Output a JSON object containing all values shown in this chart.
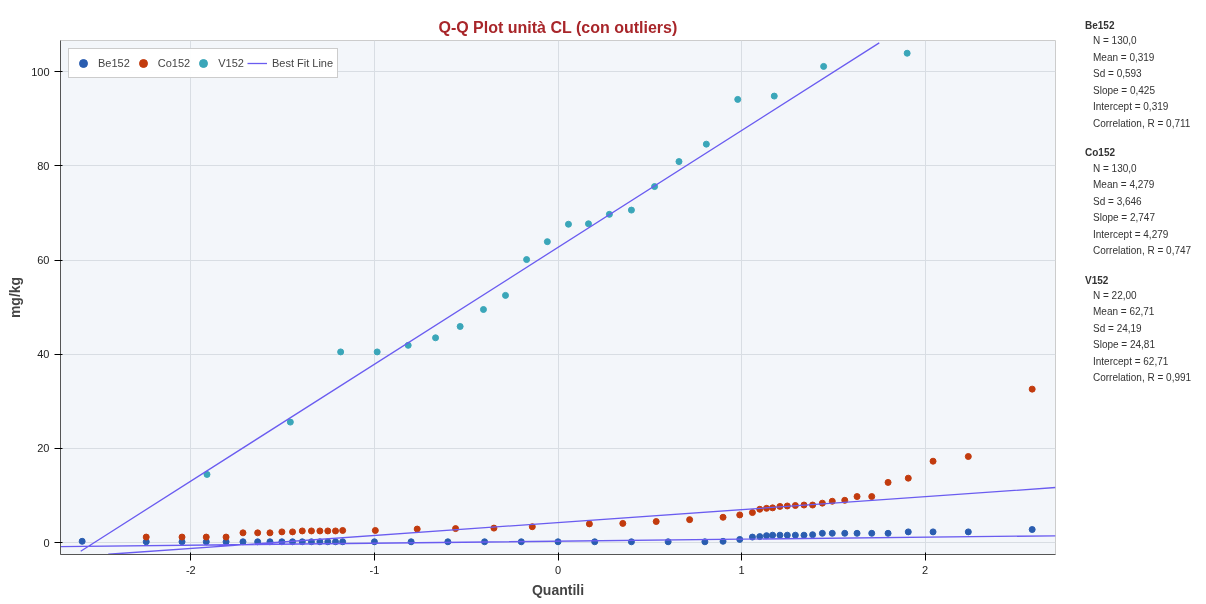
{
  "chart_data": {
    "type": "scatter",
    "title": "Q-Q Plot unità CL (con outliers)",
    "xlabel": "Quantili",
    "ylabel": "mg/kg",
    "xlim": [
      -2.71,
      2.71
    ],
    "ylim": [
      -2.5,
      106.6
    ],
    "xticks": [
      -2,
      -1,
      0,
      1,
      2
    ],
    "yticks": [
      0,
      20,
      40,
      60,
      80,
      100
    ],
    "grid": true,
    "legend": "top left",
    "marker": "circle",
    "series": [
      {
        "name": "Be152",
        "color": "#2a5db0",
        "x": [
          -2.592,
          -2.243,
          -2.048,
          -1.916,
          -1.808,
          -1.716,
          -1.636,
          -1.569,
          -1.504,
          -1.446,
          -1.393,
          -1.343,
          -1.297,
          -1.254,
          -1.212,
          -1.173,
          -1.0,
          -0.8,
          -0.6,
          -0.4,
          -0.2,
          0.0,
          0.2,
          0.4,
          0.6,
          0.8,
          0.899,
          0.99,
          1.059,
          1.099,
          1.136,
          1.169,
          1.209,
          1.249,
          1.293,
          1.34,
          1.387,
          1.44,
          1.494,
          1.562,
          1.629,
          1.709,
          1.798,
          1.908,
          2.043,
          2.235,
          2.583
        ],
        "values": [
          0.3,
          0.2,
          0.2,
          0.2,
          0.2,
          0.2,
          0.2,
          0.2,
          0.2,
          0.2,
          0.2,
          0.2,
          0.2,
          0.2,
          0.2,
          0.2,
          0.2,
          0.2,
          0.2,
          0.2,
          0.2,
          0.2,
          0.2,
          0.2,
          0.2,
          0.2,
          0.3,
          0.7,
          1.2,
          1.3,
          1.5,
          1.6,
          1.6,
          1.6,
          1.6,
          1.6,
          1.7,
          2.0,
          2.0,
          2.0,
          2.0,
          2.0,
          2.0,
          2.3,
          2.3,
          2.3,
          2.8
        ]
      },
      {
        "name": "Co152",
        "color": "#c23b0e",
        "x": [
          -2.243,
          -2.048,
          -1.916,
          -1.808,
          -1.716,
          -1.636,
          -1.569,
          -1.504,
          -1.446,
          -1.393,
          -1.343,
          -1.297,
          -1.254,
          -1.212,
          -1.173,
          -0.995,
          -0.767,
          -0.558,
          -0.349,
          -0.14,
          0.171,
          0.353,
          0.535,
          0.717,
          0.899,
          0.99,
          1.059,
          1.099,
          1.136,
          1.169,
          1.209,
          1.249,
          1.293,
          1.34,
          1.387,
          1.44,
          1.494,
          1.562,
          1.629,
          1.709,
          1.798,
          1.908,
          2.043,
          2.235,
          2.583
        ],
        "values": [
          1.2,
          1.2,
          1.2,
          1.2,
          2.1,
          2.1,
          2.1,
          2.3,
          2.3,
          2.5,
          2.5,
          2.5,
          2.5,
          2.5,
          2.6,
          2.6,
          2.9,
          3.0,
          3.1,
          3.4,
          4.0,
          4.1,
          4.5,
          4.9,
          5.4,
          5.9,
          6.4,
          7.1,
          7.3,
          7.4,
          7.7,
          7.8,
          7.9,
          8.0,
          8.0,
          8.4,
          8.8,
          9.0,
          9.8,
          9.8,
          12.8,
          13.7,
          17.3,
          18.3,
          32.6
        ]
      },
      {
        "name": "V152",
        "color": "#3aa6b9",
        "x": [
          -1.912,
          -1.458,
          -1.184,
          -0.985,
          -0.816,
          -0.667,
          -0.533,
          -0.406,
          -0.286,
          -0.171,
          -0.058,
          0.057,
          0.166,
          0.28,
          0.4,
          0.526,
          0.659,
          0.808,
          0.979,
          1.178,
          1.447,
          1.902
        ],
        "values": [
          14.5,
          25.6,
          40.5,
          40.5,
          41.9,
          43.5,
          45.9,
          49.5,
          52.5,
          60.1,
          63.9,
          67.6,
          67.7,
          69.7,
          70.6,
          75.6,
          80.9,
          84.6,
          94.1,
          94.8,
          101.1,
          103.9
        ]
      },
      {
        "name": "Best Fit Line",
        "type": "line",
        "marker": "none",
        "line_style": "solid",
        "color": "#6a5cf0",
        "x": [
          -2.6,
          1.75,
          null,
          -2.45,
          2.71,
          null,
          -2.71,
          2.71
        ],
        "values": [
          -1.8,
          106.1,
          null,
          -2.45,
          11.72,
          null,
          -0.83,
          1.47
        ]
      }
    ],
    "annotations": [
      "Be152\nN = 130,0\nMean = 0,319\nSd = 0,593\nSlope = 0,425\nIntercept = 0,319\nCorrelation, R = 0,711",
      "Co152\nN = 130,0\nMean = 4,279\nSd = 3,646\nSlope = 2,747\nIntercept = 4,279\nCorrelation, R = 0,747",
      "V152\nN = 22,00\nMean = 62,71\nSd = 24,19\nSlope = 24,81\nIntercept = 62,71\nCorrelation, R = 0,991"
    ]
  }
}
